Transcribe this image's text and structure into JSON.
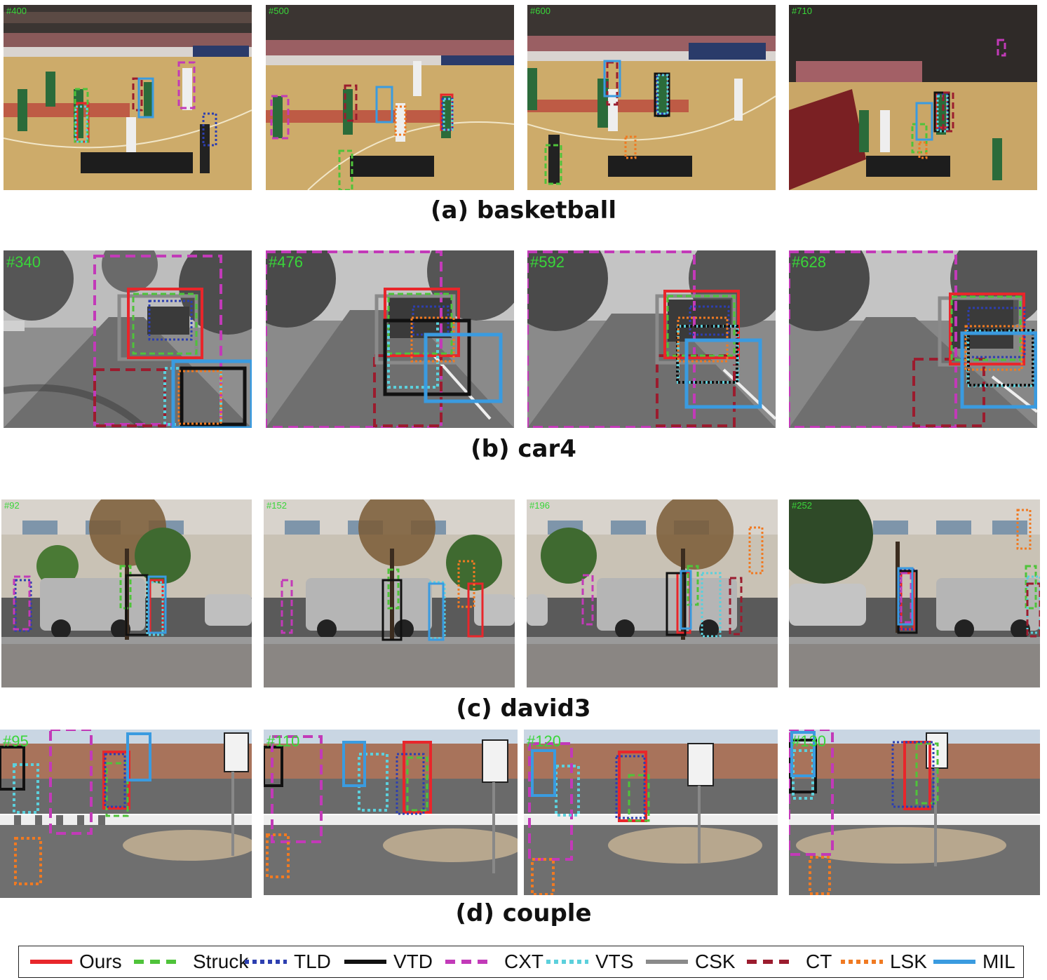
{
  "trackers": [
    {
      "key": "ours",
      "label": "Ours",
      "color": "#e8262b",
      "dash": "solid"
    },
    {
      "key": "struck",
      "label": "Struck",
      "color": "#4fc33a",
      "dash": "dash"
    },
    {
      "key": "tld",
      "label": "TLD",
      "color": "#2d3fb0",
      "dash": "dot"
    },
    {
      "key": "vtd",
      "label": "VTD",
      "color": "#111111",
      "dash": "solid"
    },
    {
      "key": "cxt",
      "label": "CXT",
      "color": "#c23ab8",
      "dash": "dash"
    },
    {
      "key": "vts",
      "label": "VTS",
      "color": "#5cd0dc",
      "dash": "dot"
    },
    {
      "key": "csk",
      "label": "CSK",
      "color": "#8a8a8a",
      "dash": "solid"
    },
    {
      "key": "ct",
      "label": "CT",
      "color": "#9b1c2e",
      "dash": "dash"
    },
    {
      "key": "lsk",
      "label": "LSK",
      "color": "#f07a22",
      "dash": "dot"
    },
    {
      "key": "mil",
      "label": "MIL",
      "color": "#3a9be0",
      "dash": "solid"
    }
  ],
  "sequences": [
    {
      "caption": "(a) basketball",
      "frames": [
        {
          "label": "#400"
        },
        {
          "label": "#500"
        },
        {
          "label": "#600"
        },
        {
          "label": "#710"
        }
      ]
    },
    {
      "caption": "(b) car4",
      "frames": [
        {
          "label": "#340"
        },
        {
          "label": "#476"
        },
        {
          "label": "#592"
        },
        {
          "label": "#628"
        }
      ]
    },
    {
      "caption": "(c) david3",
      "frames": [
        {
          "label": "#92"
        },
        {
          "label": "#152"
        },
        {
          "label": "#196"
        },
        {
          "label": "#252"
        }
      ]
    },
    {
      "caption": "(d) couple",
      "frames": [
        {
          "label": "#95"
        },
        {
          "label": "#110"
        },
        {
          "label": "#120"
        },
        {
          "label": "#130"
        }
      ]
    }
  ]
}
